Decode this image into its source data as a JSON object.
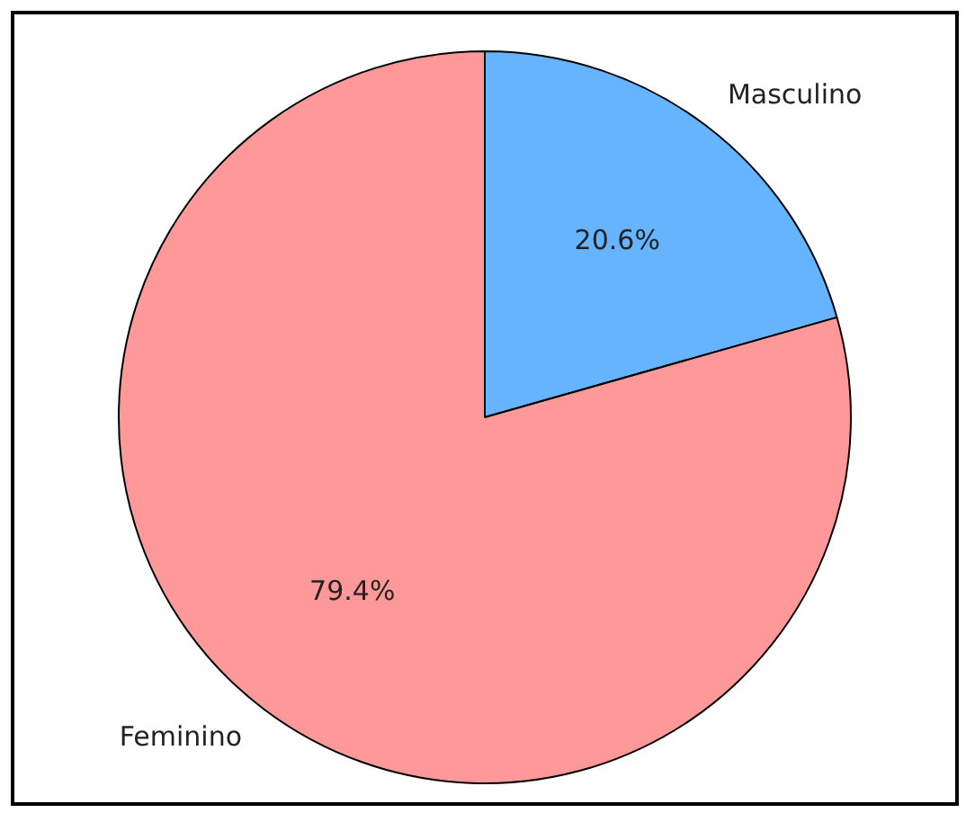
{
  "chart_data": {
    "type": "pie",
    "categories": [
      "Masculino",
      "Feminino"
    ],
    "values": [
      20.6,
      79.4
    ],
    "colors": [
      "#66b3ff",
      "#ff9999"
    ],
    "value_labels": [
      "20.6%",
      "79.4%"
    ],
    "legend": false
  }
}
